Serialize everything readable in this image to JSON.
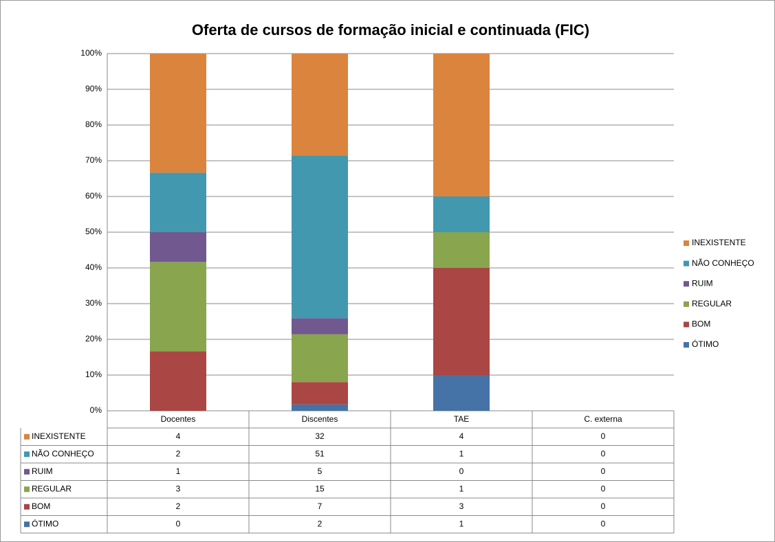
{
  "chart_data": {
    "type": "bar",
    "stacking": "percent",
    "title": "Oferta de cursos de formação inicial e continuada (FIC)",
    "categories": [
      "Docentes",
      "Discentes",
      "TAE",
      "C. externa"
    ],
    "series": [
      {
        "name": "ÓTIMO",
        "color": "#4572a7",
        "values": [
          0,
          2,
          1,
          0
        ]
      },
      {
        "name": "BOM",
        "color": "#aa4643",
        "values": [
          2,
          7,
          3,
          0
        ]
      },
      {
        "name": "REGULAR",
        "color": "#89a54e",
        "values": [
          3,
          15,
          1,
          0
        ]
      },
      {
        "name": "RUIM",
        "color": "#71588f",
        "values": [
          1,
          5,
          0,
          0
        ]
      },
      {
        "name": "NÃO CONHEÇO",
        "color": "#4198af",
        "values": [
          2,
          51,
          1,
          0
        ]
      },
      {
        "name": "INEXISTENTE",
        "color": "#db843d",
        "values": [
          4,
          32,
          4,
          0
        ]
      }
    ],
    "ylim": [
      0,
      100
    ],
    "yticks": [
      {
        "value": 0,
        "label": "0%"
      },
      {
        "value": 10,
        "label": "10%"
      },
      {
        "value": 20,
        "label": "20%"
      },
      {
        "value": 30,
        "label": "30%"
      },
      {
        "value": 40,
        "label": "40%"
      },
      {
        "value": 50,
        "label": "50%"
      },
      {
        "value": 60,
        "label": "60%"
      },
      {
        "value": 70,
        "label": "70%"
      },
      {
        "value": 80,
        "label": "80%"
      },
      {
        "value": 90,
        "label": "90%"
      },
      {
        "value": 100,
        "label": "100%"
      }
    ],
    "grid": true,
    "legend": "right",
    "data_table": true
  }
}
